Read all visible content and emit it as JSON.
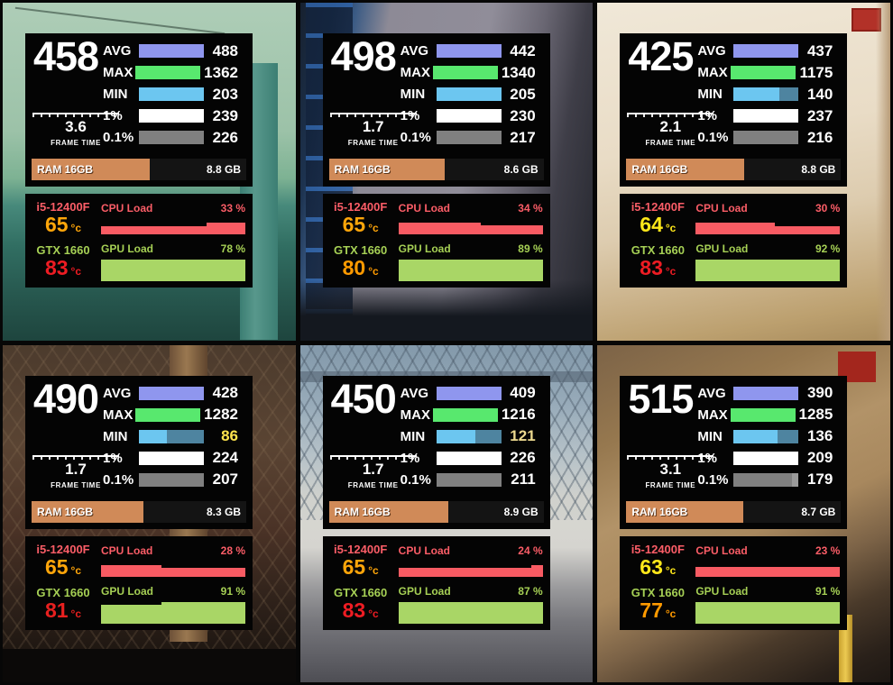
{
  "colors": {
    "cpu_accent": "#fb5d67",
    "gpu_accent": "#a6d055",
    "ram_bar": "#d08a58",
    "text": "#ffffff"
  },
  "panels": [
    {
      "fps": "458",
      "frame_time": "3.6",
      "frame_time_label": "FRAME TIME",
      "stats": [
        {
          "label": "AVG",
          "value": "488",
          "fill": 1,
          "color": "#8f96ee",
          "trough": "#000000",
          "value_color": "#ffffff"
        },
        {
          "label": "MAX",
          "value": "1362",
          "fill": 1,
          "color": "#58e86e",
          "trough": "#000000",
          "value_color": "#ffffff"
        },
        {
          "label": "MIN",
          "value": "203",
          "fill": 1,
          "color": "#6cc6f0",
          "trough": "#4e84a0",
          "value_color": "#ffffff"
        },
        {
          "label": "1%",
          "value": "239",
          "fill": 1,
          "color": "#ffffff",
          "trough": "#000000",
          "value_color": "#ffffff"
        },
        {
          "label": "0.1%",
          "value": "226",
          "fill": 1,
          "color": "#808080",
          "trough": "#000000",
          "value_color": "#ffffff"
        }
      ],
      "ram": {
        "label": "RAM 16GB",
        "value": "8.8 GB",
        "fill": 0.55
      },
      "cpu": {
        "name": "i5-12400F",
        "load_label": "CPU Load",
        "load": "33 %",
        "temp": "65",
        "unit": "°c",
        "temp_color": "#ffa60a",
        "graph": {
          "color": "#f85b63",
          "segs": [
            [
              0.73,
              0.7
            ],
            [
              0.27,
              1
            ]
          ]
        }
      },
      "gpu": {
        "name": "GTX 1660",
        "load_label": "GPU Load",
        "load": "78 %",
        "temp": "83",
        "unit": "°c",
        "temp_color": "#ee1c23",
        "graph": {
          "color": "#a9d666",
          "segs": [
            [
              1,
              1
            ]
          ]
        }
      }
    },
    {
      "fps": "498",
      "frame_time": "1.7",
      "frame_time_label": "FRAME TIME",
      "stats": [
        {
          "label": "AVG",
          "value": "442",
          "fill": 1,
          "color": "#8f96ee",
          "trough": "#000000",
          "value_color": "#ffffff"
        },
        {
          "label": "MAX",
          "value": "1340",
          "fill": 1,
          "color": "#58e86e",
          "trough": "#000000",
          "value_color": "#ffffff"
        },
        {
          "label": "MIN",
          "value": "205",
          "fill": 1,
          "color": "#6cc6f0",
          "trough": "#4e84a0",
          "value_color": "#ffffff"
        },
        {
          "label": "1%",
          "value": "230",
          "fill": 1,
          "color": "#ffffff",
          "trough": "#000000",
          "value_color": "#ffffff"
        },
        {
          "label": "0.1%",
          "value": "217",
          "fill": 1,
          "color": "#808080",
          "trough": "#000000",
          "value_color": "#ffffff"
        }
      ],
      "ram": {
        "label": "RAM 16GB",
        "value": "8.6 GB",
        "fill": 0.5375
      },
      "cpu": {
        "name": "i5-12400F",
        "load_label": "CPU Load",
        "load": "34 %",
        "temp": "65",
        "unit": "°c",
        "temp_color": "#ffa60a",
        "graph": {
          "color": "#f85b63",
          "segs": [
            [
              0.57,
              1
            ],
            [
              0.43,
              0.75
            ]
          ]
        }
      },
      "gpu": {
        "name": "GTX 1660",
        "load_label": "GPU Load",
        "load": "89 %",
        "temp": "80",
        "unit": "°c",
        "temp_color": "#ff9a00",
        "graph": {
          "color": "#a9d666",
          "segs": [
            [
              1,
              1
            ]
          ]
        }
      }
    },
    {
      "fps": "425",
      "frame_time": "2.1",
      "frame_time_label": "FRAME TIME",
      "stats": [
        {
          "label": "AVG",
          "value": "437",
          "fill": 1,
          "color": "#8f96ee",
          "trough": "#000000",
          "value_color": "#ffffff"
        },
        {
          "label": "MAX",
          "value": "1175",
          "fill": 1,
          "color": "#58e86e",
          "trough": "#000000",
          "value_color": "#ffffff"
        },
        {
          "label": "MIN",
          "value": "140",
          "fill": 0.7,
          "color": "#6cc6f0",
          "trough": "#4e84a0",
          "value_color": "#ffffff"
        },
        {
          "label": "1%",
          "value": "237",
          "fill": 1,
          "color": "#ffffff",
          "trough": "#000000",
          "value_color": "#ffffff"
        },
        {
          "label": "0.1%",
          "value": "216",
          "fill": 1,
          "color": "#808080",
          "trough": "#000000",
          "value_color": "#ffffff"
        }
      ],
      "ram": {
        "label": "RAM 16GB",
        "value": "8.8 GB",
        "fill": 0.55
      },
      "cpu": {
        "name": "i5-12400F",
        "load_label": "CPU Load",
        "load": "30 %",
        "temp": "64",
        "unit": "°c",
        "temp_color": "#ffe81a",
        "graph": {
          "color": "#f85b63",
          "segs": [
            [
              0.55,
              1
            ],
            [
              0.45,
              0.72
            ]
          ]
        }
      },
      "gpu": {
        "name": "GTX 1660",
        "load_label": "GPU Load",
        "load": "92 %",
        "temp": "83",
        "unit": "°c",
        "temp_color": "#ee1c23",
        "graph": {
          "color": "#a9d666",
          "segs": [
            [
              1,
              1
            ]
          ]
        }
      }
    },
    {
      "fps": "490",
      "frame_time": "1.7",
      "frame_time_label": "FRAME TIME",
      "stats": [
        {
          "label": "AVG",
          "value": "428",
          "fill": 1,
          "color": "#8f96ee",
          "trough": "#000000",
          "value_color": "#ffffff"
        },
        {
          "label": "MAX",
          "value": "1282",
          "fill": 1,
          "color": "#58e86e",
          "trough": "#000000",
          "value_color": "#ffffff"
        },
        {
          "label": "MIN",
          "value": "86",
          "fill": 0.43,
          "color": "#6cc6f0",
          "trough": "#4e84a0",
          "value_color": "#ffe44d"
        },
        {
          "label": "1%",
          "value": "224",
          "fill": 1,
          "color": "#ffffff",
          "trough": "#000000",
          "value_color": "#ffffff"
        },
        {
          "label": "0.1%",
          "value": "207",
          "fill": 1,
          "color": "#808080",
          "trough": "#000000",
          "value_color": "#ffffff"
        }
      ],
      "ram": {
        "label": "RAM 16GB",
        "value": "8.3 GB",
        "fill": 0.519
      },
      "cpu": {
        "name": "i5-12400F",
        "load_label": "CPU Load",
        "load": "28 %",
        "temp": "65",
        "unit": "°c",
        "temp_color": "#ffa60a",
        "graph": {
          "color": "#f85b63",
          "segs": [
            [
              0.42,
              1
            ],
            [
              0.58,
              0.72
            ]
          ]
        }
      },
      "gpu": {
        "name": "GTX 1660",
        "load_label": "GPU Load",
        "load": "91 %",
        "temp": "81",
        "unit": "°c",
        "temp_color": "#e8201f",
        "graph": {
          "color": "#a9d666",
          "segs": [
            [
              0.42,
              0.86
            ],
            [
              0.58,
              1
            ]
          ]
        }
      }
    },
    {
      "fps": "450",
      "frame_time": "1.7",
      "frame_time_label": "FRAME TIME",
      "stats": [
        {
          "label": "AVG",
          "value": "409",
          "fill": 1,
          "color": "#8f96ee",
          "trough": "#000000",
          "value_color": "#ffffff"
        },
        {
          "label": "MAX",
          "value": "1216",
          "fill": 1,
          "color": "#58e86e",
          "trough": "#000000",
          "value_color": "#ffffff"
        },
        {
          "label": "MIN",
          "value": "121",
          "fill": 0.6,
          "color": "#6cc6f0",
          "trough": "#4e84a0",
          "value_color": "#ecd98f"
        },
        {
          "label": "1%",
          "value": "226",
          "fill": 1,
          "color": "#ffffff",
          "trough": "#000000",
          "value_color": "#ffffff"
        },
        {
          "label": "0.1%",
          "value": "211",
          "fill": 1,
          "color": "#808080",
          "trough": "#000000",
          "value_color": "#ffffff"
        }
      ],
      "ram": {
        "label": "RAM 16GB",
        "value": "8.9 GB",
        "fill": 0.556
      },
      "cpu": {
        "name": "i5-12400F",
        "load_label": "CPU Load",
        "load": "24 %",
        "temp": "65",
        "unit": "°c",
        "temp_color": "#ffa60a",
        "graph": {
          "color": "#f85b63",
          "segs": [
            [
              0.92,
              0.7
            ],
            [
              0.08,
              1
            ]
          ]
        }
      },
      "gpu": {
        "name": "GTX 1660",
        "load_label": "GPU Load",
        "load": "87 %",
        "temp": "83",
        "unit": "°c",
        "temp_color": "#ee1c23",
        "graph": {
          "color": "#a9d666",
          "segs": [
            [
              1,
              1
            ]
          ]
        }
      }
    },
    {
      "fps": "515",
      "frame_time": "3.1",
      "frame_time_label": "FRAME TIME",
      "stats": [
        {
          "label": "AVG",
          "value": "390",
          "fill": 1,
          "color": "#8f96ee",
          "trough": "#000000",
          "value_color": "#ffffff"
        },
        {
          "label": "MAX",
          "value": "1285",
          "fill": 1,
          "color": "#58e86e",
          "trough": "#000000",
          "value_color": "#ffffff"
        },
        {
          "label": "MIN",
          "value": "136",
          "fill": 0.68,
          "color": "#6cc6f0",
          "trough": "#4e84a0",
          "value_color": "#ffffff"
        },
        {
          "label": "1%",
          "value": "209",
          "fill": 1,
          "color": "#ffffff",
          "trough": "#000000",
          "value_color": "#ffffff"
        },
        {
          "label": "0.1%",
          "value": "179",
          "fill": 0.9,
          "color": "#808080",
          "trough": "#9a9a9a",
          "value_color": "#ffffff"
        }
      ],
      "ram": {
        "label": "RAM 16GB",
        "value": "8.7 GB",
        "fill": 0.544
      },
      "cpu": {
        "name": "i5-12400F",
        "load_label": "CPU Load",
        "load": "23 %",
        "temp": "63",
        "unit": "°c",
        "temp_color": "#ffe81a",
        "graph": {
          "color": "#f85b63",
          "segs": [
            [
              1,
              0.8
            ]
          ]
        }
      },
      "gpu": {
        "name": "GTX 1660",
        "load_label": "GPU Load",
        "load": "91 %",
        "temp": "77",
        "unit": "°c",
        "temp_color": "#ff9a00",
        "graph": {
          "color": "#a9d666",
          "segs": [
            [
              1,
              1
            ]
          ]
        }
      }
    }
  ]
}
